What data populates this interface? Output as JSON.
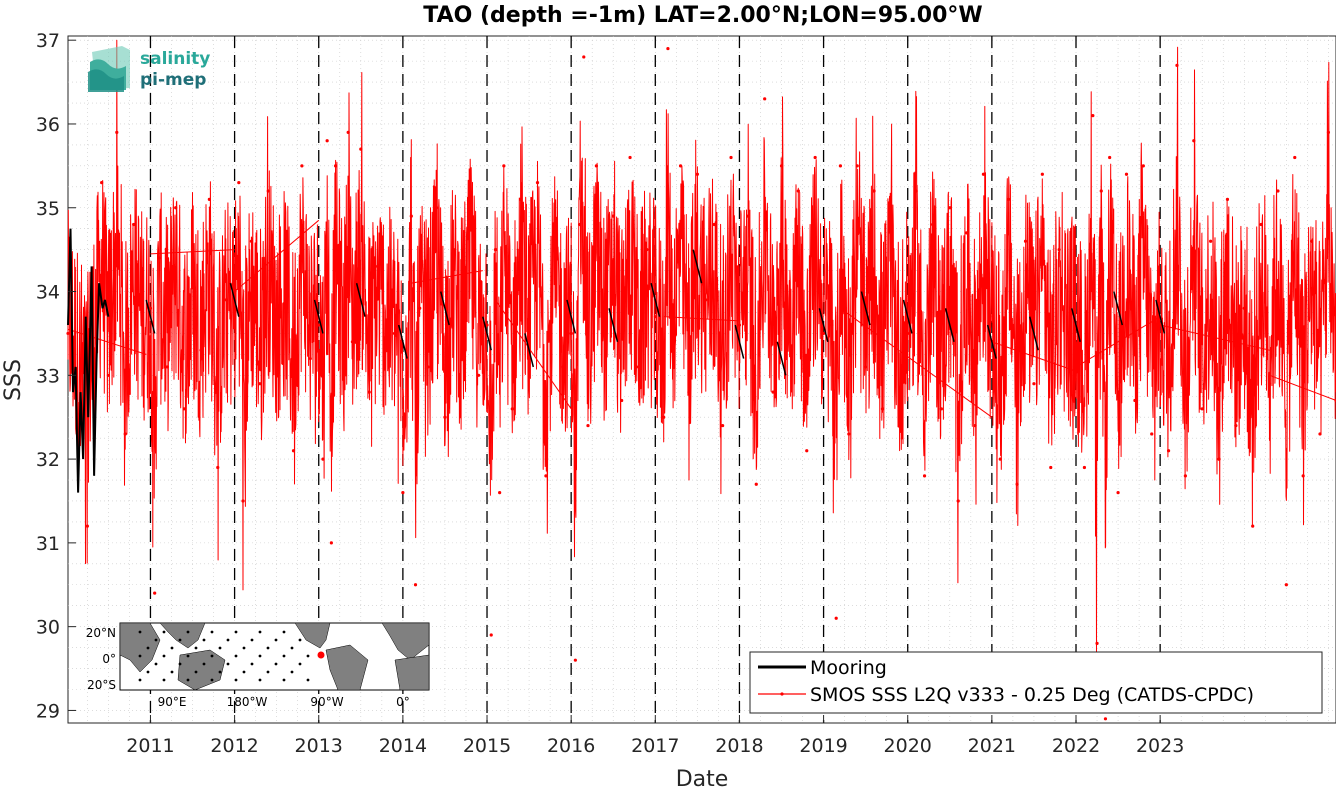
{
  "chart_data": {
    "type": "line",
    "title": "TAO (depth =-1m) LAT=2.00°N;LON=95.00°W",
    "xlabel": "Date",
    "ylabel": "SSS",
    "xlim": [
      2010.02,
      2025.09
    ],
    "ylim": [
      28.85,
      37.05
    ],
    "x_ticks": [
      2011,
      2012,
      2013,
      2014,
      2015,
      2016,
      2017,
      2018,
      2019,
      2020,
      2021,
      2022,
      2023
    ],
    "x_tick_labels": [
      "2011",
      "2012",
      "2013",
      "2014",
      "2015",
      "2016",
      "2017",
      "2018",
      "2019",
      "2020",
      "2021",
      "2022",
      "2023"
    ],
    "y_ticks": [
      29,
      30,
      31,
      32,
      33,
      34,
      35,
      36,
      37
    ],
    "y_tick_labels": [
      "29",
      "30",
      "31",
      "32",
      "33",
      "34",
      "35",
      "36",
      "37"
    ],
    "grid": "dotted minor grid",
    "year_markers": "dashed vertical line at each year start",
    "legend_position": "bottom-right",
    "series": [
      {
        "name": "Mooring",
        "color": "#000000",
        "x": [
          2010.02,
          2010.05,
          2010.08,
          2010.11,
          2010.14,
          2010.17,
          2010.2,
          2010.23,
          2010.26,
          2010.3,
          2010.33,
          2010.36,
          2010.39,
          2010.43,
          2010.46,
          2010.5,
          2011.0,
          2012.0,
          2013.0,
          2013.5,
          2014.0,
          2014.5,
          2015.0,
          2015.5,
          2016.0,
          2016.5,
          2017.0,
          2017.5,
          2018.0,
          2018.5,
          2019.0,
          2019.5,
          2020.0,
          2020.5,
          2021.0,
          2021.5,
          2022.0,
          2022.5,
          2023.0
        ],
        "y": [
          33.6,
          34.75,
          32.8,
          33.1,
          31.6,
          32.8,
          32.0,
          33.7,
          32.5,
          34.3,
          31.8,
          33.2,
          34.1,
          33.8,
          33.9,
          33.7,
          33.7,
          33.9,
          33.7,
          33.9,
          33.4,
          33.8,
          33.5,
          33.3,
          33.7,
          33.6,
          33.9,
          34.3,
          33.4,
          33.2,
          33.6,
          33.8,
          33.7,
          33.6,
          33.4,
          33.5,
          33.6,
          33.8,
          33.7
        ]
      },
      {
        "name": "SMOS SSS L2Q v333 - 0.25 Deg (CATDS-CPDC)",
        "color": "#ff0000",
        "x": [
          2010.02,
          2010.25,
          2010.42,
          2010.5,
          2010.6,
          2010.7,
          2010.8,
          2010.9,
          2011.0,
          2011.05,
          2011.1,
          2011.2,
          2011.3,
          2011.4,
          2011.5,
          2011.6,
          2011.7,
          2011.8,
          2011.9,
          2012.0,
          2012.05,
          2012.1,
          2012.2,
          2012.3,
          2012.4,
          2012.5,
          2012.6,
          2012.7,
          2012.8,
          2012.9,
          2013.0,
          2013.05,
          2013.1,
          2013.15,
          2013.2,
          2013.3,
          2013.35,
          2013.4,
          2013.5,
          2013.6,
          2013.7,
          2013.8,
          2013.9,
          2014.0,
          2014.1,
          2014.15,
          2014.2,
          2014.3,
          2014.4,
          2014.5,
          2014.6,
          2014.7,
          2014.8,
          2014.9,
          2015.0,
          2015.05,
          2015.1,
          2015.15,
          2015.2,
          2015.3,
          2015.4,
          2015.5,
          2015.6,
          2015.7,
          2015.8,
          2015.9,
          2016.0,
          2016.05,
          2016.1,
          2016.15,
          2016.2,
          2016.3,
          2016.4,
          2016.5,
          2016.6,
          2016.7,
          2016.8,
          2016.9,
          2017.0,
          2017.1,
          2017.15,
          2017.2,
          2017.3,
          2017.4,
          2017.5,
          2017.6,
          2017.7,
          2017.8,
          2017.9,
          2018.0,
          2018.1,
          2018.2,
          2018.3,
          2018.4,
          2018.5,
          2018.6,
          2018.7,
          2018.8,
          2018.9,
          2019.0,
          2019.1,
          2019.15,
          2019.2,
          2019.3,
          2019.4,
          2019.5,
          2019.6,
          2019.7,
          2019.8,
          2019.9,
          2020.0,
          2020.1,
          2020.2,
          2020.3,
          2020.4,
          2020.5,
          2020.6,
          2020.7,
          2020.8,
          2020.9,
          2021.0,
          2021.1,
          2021.2,
          2021.3,
          2021.4,
          2021.5,
          2021.6,
          2021.7,
          2021.8,
          2021.9,
          2022.0,
          2022.1,
          2022.2,
          2022.25,
          2022.3,
          2022.35,
          2022.4,
          2022.5,
          2022.6,
          2022.7,
          2022.8,
          2022.9,
          2023.0,
          2023.1,
          2023.2,
          2023.3,
          2023.4,
          2023.5,
          2023.6,
          2023.7,
          2023.8,
          2023.9,
          2024.0,
          2024.1,
          2024.2,
          2024.3,
          2024.4,
          2024.5,
          2024.6,
          2024.7,
          2024.8,
          2024.9,
          2025.0,
          2025.09
        ],
        "y": [
          33.5,
          31.2,
          35.3,
          33.0,
          35.9,
          32.3,
          34.8,
          33.6,
          33.8,
          30.4,
          34.4,
          33.1,
          35.0,
          32.6,
          34.1,
          33.3,
          35.1,
          31.9,
          33.9,
          33.8,
          35.3,
          31.5,
          34.6,
          32.9,
          35.2,
          33.5,
          34.3,
          32.1,
          35.5,
          33.2,
          33.6,
          32.0,
          35.8,
          31.0,
          35.5,
          33.0,
          35.9,
          33.4,
          35.7,
          32.8,
          34.3,
          33.6,
          33.5,
          31.6,
          34.9,
          30.5,
          33.8,
          33.1,
          35.0,
          32.5,
          34.5,
          33.2,
          35.2,
          33.0,
          33.6,
          29.9,
          34.5,
          31.6,
          35.5,
          32.6,
          35.1,
          33.6,
          35.3,
          31.8,
          34.7,
          33.1,
          33.5,
          29.6,
          34.8,
          36.8,
          32.4,
          35.5,
          33.5,
          34.9,
          32.7,
          35.6,
          33.1,
          34.5,
          33.7,
          32.5,
          36.9,
          33.5,
          35.5,
          32.8,
          35.4,
          33.9,
          34.8,
          32.4,
          35.6,
          33.6,
          34.9,
          31.7,
          36.3,
          32.8,
          35.5,
          33.5,
          35.2,
          32.1,
          35.6,
          33.5,
          33.6,
          30.1,
          35.5,
          32.3,
          35.5,
          33.1,
          35.2,
          32.6,
          34.9,
          32.4,
          33.5,
          35.2,
          31.8,
          34.8,
          32.6,
          35.0,
          31.5,
          34.7,
          32.4,
          35.4,
          33.3,
          32.0,
          35.1,
          31.7,
          34.6,
          32.9,
          35.4,
          31.9,
          34.5,
          33.5,
          33.3,
          31.9,
          36.1,
          29.8,
          35.2,
          28.9,
          35.6,
          31.6,
          35.4,
          32.7,
          35.5,
          32.3,
          33.6,
          32.1,
          36.7,
          31.8,
          35.8,
          32.6,
          34.6,
          32.0,
          35.1,
          32.4,
          33.8,
          31.2,
          34.8,
          32.9,
          35.2,
          30.5,
          35.6,
          31.8,
          34.6,
          32.3,
          35.9,
          32.7
        ],
        "fill_noise": true
      }
    ]
  },
  "logo": {
    "line1": "salinity",
    "line2": "pi-mep"
  },
  "inset_map": {
    "x_tick_labels": [
      "90°E",
      "180°W",
      "90°W",
      "0°"
    ],
    "y_tick_labels": [
      "20°N",
      "0°",
      "20°S"
    ],
    "marker_color": "#ff0000"
  }
}
